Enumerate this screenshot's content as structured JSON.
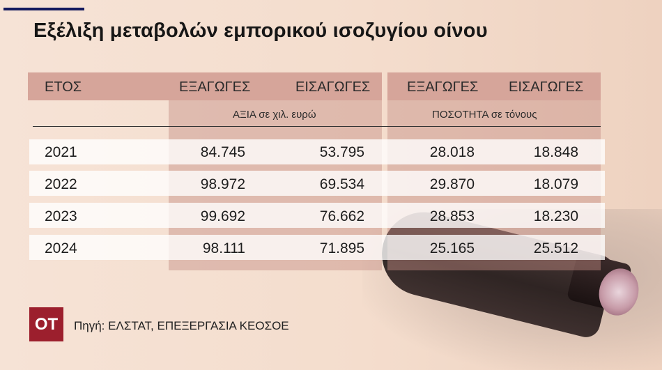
{
  "title": "Εξέλιξη μεταβολών εμπορικού ισοζυγίου οίνου",
  "headers": {
    "year": "ΕΤΟΣ",
    "value_exports": "ΕΞΑΓΩΓΕΣ",
    "value_imports": "ΕΙΣΑΓΩΓΕΣ",
    "qty_exports": "ΕΞΑΓΩΓΕΣ",
    "qty_imports": "ΕΙΣΑΓΩΓΕΣ"
  },
  "subheaders": {
    "value": "ΑΞΙΑ  σε χιλ. ευρώ",
    "quantity": "ΠΟΣΟΤΗΤΑ σε τόνους"
  },
  "rows": [
    {
      "year": "2021",
      "value_exports": "84.745",
      "value_imports": "53.795",
      "qty_exports": "28.018",
      "qty_imports": "18.848"
    },
    {
      "year": "2022",
      "value_exports": "98.972",
      "value_imports": "69.534",
      "qty_exports": "29.870",
      "qty_imports": "18.079"
    },
    {
      "year": "2023",
      "value_exports": "99.692",
      "value_imports": "76.662",
      "qty_exports": "28.853",
      "qty_imports": "18.230"
    },
    {
      "year": "2024",
      "value_exports": "98.111",
      "value_imports": "71.895",
      "qty_exports": "25.165",
      "qty_imports": "25.512"
    }
  ],
  "logo": "OT",
  "source": "Πηγή: ΕΛΣΤΑΤ, ΕΠΕΞΕΡΓΑΣΙΑ ΚΕΟΣΟΕ",
  "colors": {
    "accent_line": "#141a5e",
    "logo_bg": "#9c1f2d",
    "header_band": "#d6a59a"
  }
}
